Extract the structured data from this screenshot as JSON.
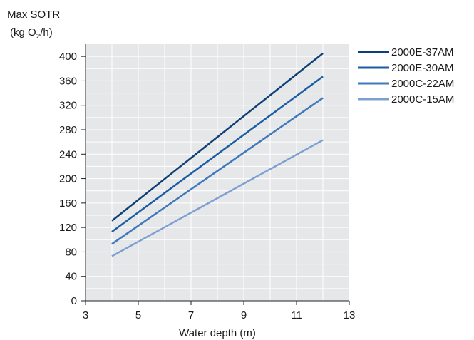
{
  "chart_data": {
    "type": "line",
    "ylabel_line1": "Max SOTR",
    "ylabel_line2_pre": "(kg O",
    "ylabel_line2_sub": "2",
    "ylabel_line2_post": "/h)",
    "xlabel": "Water depth (m)",
    "xlim": [
      3,
      13
    ],
    "ylim": [
      0,
      420
    ],
    "xticks": [
      3,
      5,
      7,
      9,
      11,
      13
    ],
    "yticks": [
      0,
      40,
      80,
      120,
      160,
      200,
      240,
      280,
      320,
      360,
      400
    ],
    "grid": true,
    "legend_position": "right",
    "plot_background": "#e6e7e8",
    "grid_color": "#ffffff",
    "series": [
      {
        "name": "2000E-37AM",
        "color": "#0f3f77",
        "x": [
          4,
          12
        ],
        "y": [
          131,
          405
        ]
      },
      {
        "name": "2000E-30AM",
        "color": "#1a5da5",
        "x": [
          4,
          12
        ],
        "y": [
          113,
          367
        ]
      },
      {
        "name": "2000C-22AM",
        "color": "#3f78bc",
        "x": [
          4,
          12
        ],
        "y": [
          93,
          332
        ]
      },
      {
        "name": "2000C-15AM",
        "color": "#7d9fd2",
        "x": [
          4,
          12
        ],
        "y": [
          73,
          263
        ]
      }
    ]
  }
}
